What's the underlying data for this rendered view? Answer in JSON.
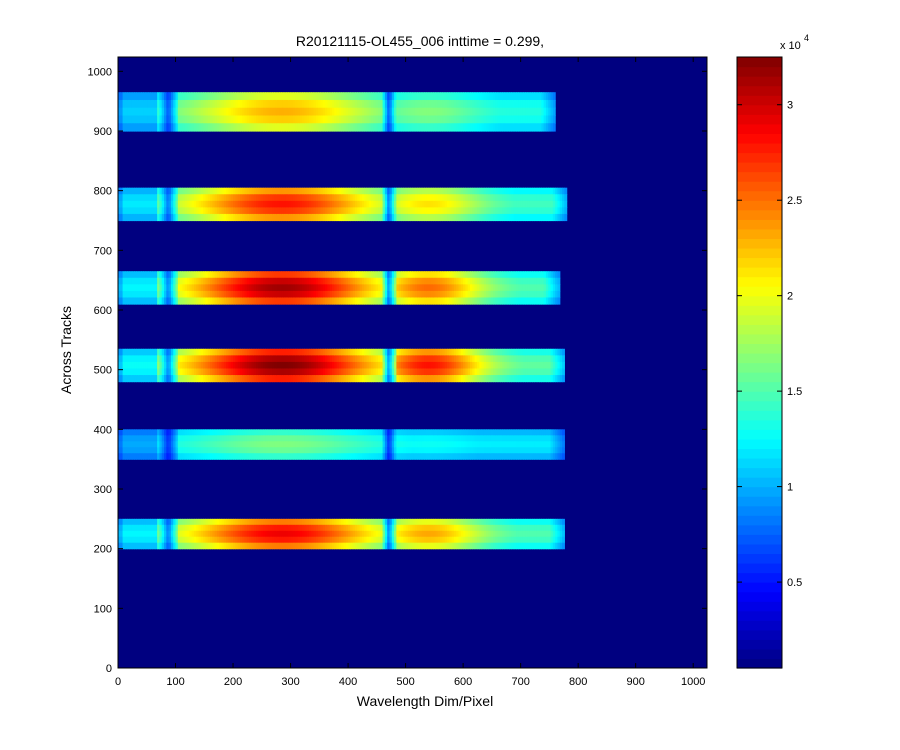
{
  "chart_data": {
    "type": "heatmap",
    "title": "R20121115-OL455_006 inttime = 0.299,",
    "xlabel": "Wavelength Dim/Pixel",
    "ylabel": "Across Tracks",
    "xlim": [
      0,
      1024
    ],
    "ylim": [
      0,
      1024
    ],
    "x_ticks": [
      0,
      100,
      200,
      300,
      400,
      500,
      600,
      700,
      800,
      900,
      1000
    ],
    "y_ticks": [
      0,
      100,
      200,
      300,
      400,
      500,
      600,
      700,
      800,
      900,
      1000
    ],
    "colormap": "jet",
    "background_value": 500,
    "colorbar": {
      "range": [
        500,
        32500
      ],
      "ticks": [
        5000,
        10000,
        15000,
        20000,
        25000,
        30000
      ],
      "tick_labels": [
        "0.5",
        "1",
        "1.5",
        "2",
        "2.5",
        "3"
      ],
      "exponent_label": "x 10",
      "exponent": "4"
    },
    "gap_pixels": [
      [
        70,
        105
      ],
      [
        460,
        482
      ]
    ],
    "tracks": [
      {
        "y_range": [
          200,
          250
        ],
        "x_end": 775,
        "peak_center": 285,
        "peak_value": 29000,
        "base_value": 15000,
        "secondary_peak": 24500
      },
      {
        "y_range": [
          350,
          400
        ],
        "x_end": 775,
        "peak_center": 285,
        "peak_value": 16500,
        "base_value": 12000,
        "secondary_peak": 13500
      },
      {
        "y_range": [
          480,
          535
        ],
        "x_end": 775,
        "peak_center": 285,
        "peak_value": 32500,
        "base_value": 15500,
        "secondary_peak": 29500
      },
      {
        "y_range": [
          610,
          665
        ],
        "x_end": 765,
        "peak_center": 285,
        "peak_value": 31500,
        "base_value": 15000,
        "secondary_peak": 26500
      },
      {
        "y_range": [
          750,
          805
        ],
        "x_end": 780,
        "peak_center": 285,
        "peak_value": 28000,
        "base_value": 14500,
        "secondary_peak": 22500
      },
      {
        "y_range": [
          900,
          965
        ],
        "x_end": 760,
        "peak_center": 285,
        "peak_value": 23000,
        "base_value": 13500,
        "secondary_peak": 17500
      }
    ]
  }
}
